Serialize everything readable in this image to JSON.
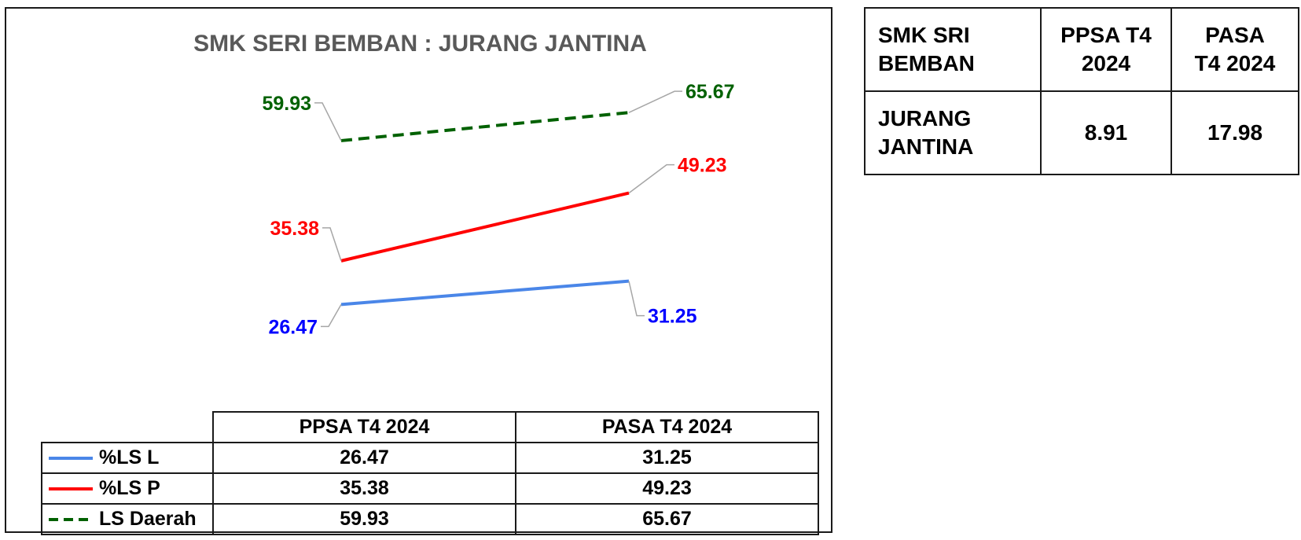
{
  "chart_data": {
    "type": "line",
    "title": "SMK SERI BEMBAN : JURANG JANTINA",
    "categories": [
      "PPSA T4 2024",
      "PASA T4 2024"
    ],
    "series": [
      {
        "name": "%LS L",
        "values": [
          26.47,
          31.25
        ],
        "color": "#4a86e8",
        "dashed": false,
        "label_color": "#0000ff"
      },
      {
        "name": "%LS P",
        "values": [
          35.38,
          49.23
        ],
        "color": "#ff0000",
        "dashed": false,
        "label_color": "#ff0000"
      },
      {
        "name": "LS Daerah",
        "values": [
          59.93,
          65.67
        ],
        "color": "#006100",
        "dashed": true,
        "label_color": "#006100"
      }
    ],
    "data_table": true,
    "legend": "data-table"
  },
  "summary_table": {
    "corner": "SMK SRI\nBEMBAN",
    "columns": [
      "PPSA T4\n2024",
      "PASA\nT4 2024"
    ],
    "row_label": "JURANG\nJANTINA",
    "values": [
      "8.91",
      "17.98"
    ]
  }
}
